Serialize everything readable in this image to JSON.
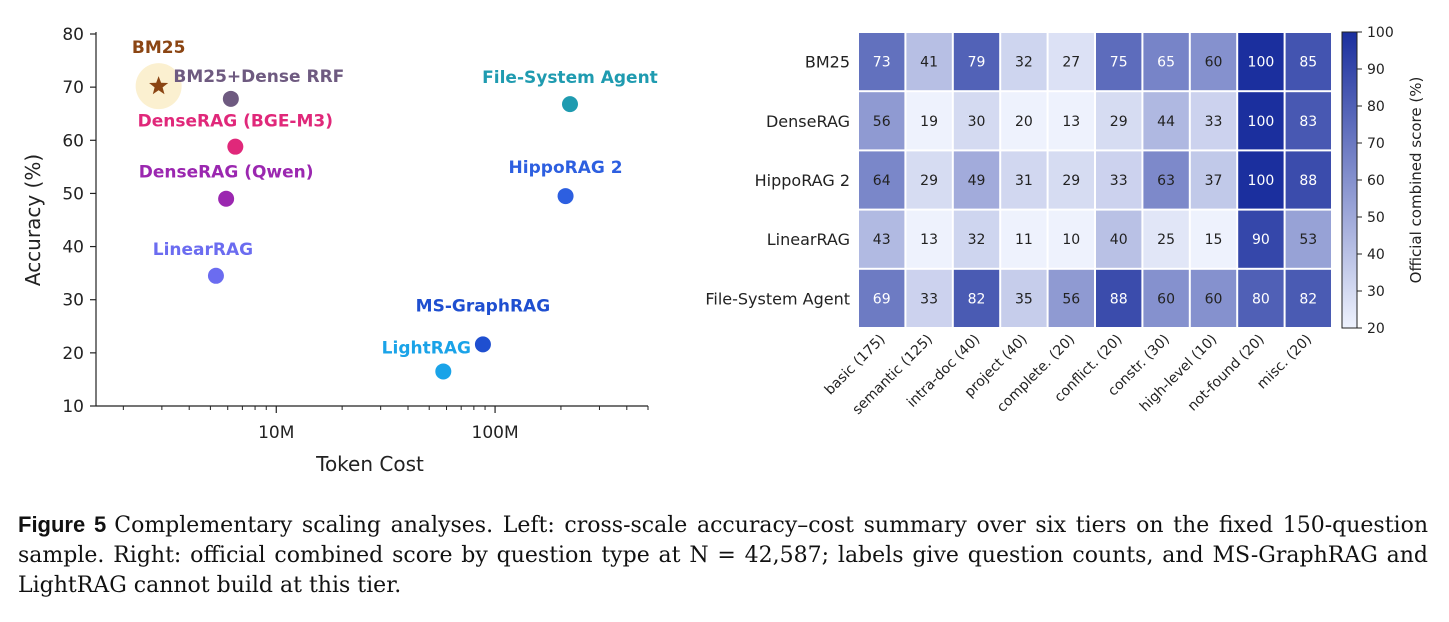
{
  "chart_data": [
    {
      "type": "scatter",
      "xlabel": "Token Cost",
      "ylabel": "Accuracy (%)",
      "xscale": "log",
      "xlim": [
        1500000,
        500000000
      ],
      "ylim": [
        10,
        80
      ],
      "yticks": [
        10,
        20,
        30,
        40,
        50,
        60,
        70,
        80
      ],
      "xtick_labels": [
        {
          "value": 10000000,
          "label": "10M"
        },
        {
          "value": 100000000,
          "label": "100M"
        }
      ],
      "grid": false,
      "points": [
        {
          "name": "BM25",
          "x": 2900000,
          "y": 70.2,
          "color": "#8b4513",
          "marker": "star",
          "halo": true
        },
        {
          "name": "BM25+Dense RRF",
          "x": 6200000,
          "y": 67.8,
          "color": "#6e5a80",
          "marker": "circle"
        },
        {
          "name": "DenseRAG (BGE-M3)",
          "x": 6500000,
          "y": 58.8,
          "color": "#e0287a",
          "marker": "circle"
        },
        {
          "name": "DenseRAG (Qwen)",
          "x": 5900000,
          "y": 49.0,
          "color": "#9b27b0",
          "marker": "circle"
        },
        {
          "name": "LinearRAG",
          "x": 5300000,
          "y": 34.5,
          "color": "#6b6cf0",
          "marker": "circle"
        },
        {
          "name": "File-System Agent",
          "x": 220000000,
          "y": 66.8,
          "color": "#1f9bb0",
          "marker": "circle"
        },
        {
          "name": "HippoRAG 2",
          "x": 210000000,
          "y": 49.5,
          "color": "#2d5fe0",
          "marker": "circle"
        },
        {
          "name": "MS-GraphRAG",
          "x": 88000000,
          "y": 21.6,
          "color": "#1f4fd0",
          "marker": "circle"
        },
        {
          "name": "LightRAG",
          "x": 58000000,
          "y": 16.5,
          "color": "#1aa3e8",
          "marker": "circle"
        }
      ]
    },
    {
      "type": "heatmap",
      "rows": [
        "BM25",
        "DenseRAG",
        "HippoRAG 2",
        "LinearRAG",
        "File-System Agent"
      ],
      "columns": [
        "basic (175)",
        "semantic (125)",
        "intra-doc (40)",
        "project (40)",
        "complete. (20)",
        "conflict. (20)",
        "constr. (30)",
        "high-level (10)",
        "not-found (20)",
        "misc. (20)"
      ],
      "values": [
        [
          73,
          41,
          79,
          32,
          27,
          75,
          65,
          60,
          100,
          85
        ],
        [
          56,
          19,
          30,
          20,
          13,
          29,
          44,
          33,
          100,
          83
        ],
        [
          64,
          29,
          49,
          31,
          29,
          33,
          63,
          37,
          100,
          88
        ],
        [
          43,
          13,
          32,
          11,
          10,
          40,
          25,
          15,
          90,
          53
        ],
        [
          69,
          33,
          82,
          35,
          56,
          88,
          60,
          60,
          80,
          82
        ]
      ],
      "colorbar": {
        "label": "Official combined score (%)",
        "min": 20,
        "max": 100,
        "ticks": [
          20,
          30,
          40,
          50,
          60,
          70,
          80,
          90,
          100
        ],
        "color_low": "#eef2fd",
        "color_high": "#1b2f9e"
      }
    }
  ],
  "caption": {
    "label": "Figure 5",
    "text": "Complementary scaling analyses. Left: cross-scale accuracy–cost summary over six tiers on the fixed 150-question sample. Right: official combined score by question type at N = 42,587; labels give question counts, and MS-GraphRAG and LightRAG cannot build at this tier."
  }
}
